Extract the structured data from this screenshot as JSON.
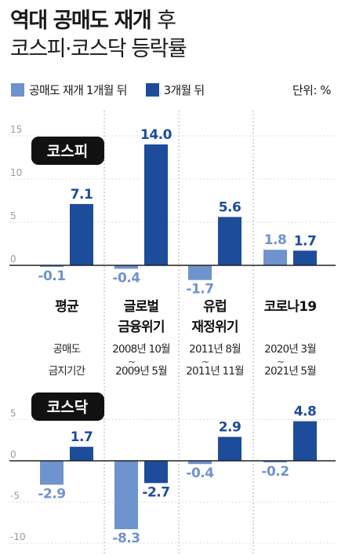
{
  "title": {
    "bold": "역대 공매도 재개",
    "light": "후",
    "line2": "코스피·코스닥 등락률"
  },
  "legend": {
    "series1": "공매도 재개 1개월 뒤",
    "series2": "3개월 뒤"
  },
  "unit": "단위: %",
  "colors": {
    "series1": "#6f93cc",
    "series2": "#1d4c9a",
    "tag_bg": "#111111",
    "tag_text": "#ffffff"
  },
  "periods": [
    {
      "name_lines": [
        "평균"
      ],
      "date_lines": [
        "공매도",
        "금지기간"
      ]
    },
    {
      "name_lines": [
        "글로벌",
        "금융위기"
      ],
      "date_lines": [
        "2008년 10월",
        "2009년 5월"
      ]
    },
    {
      "name_lines": [
        "유럽",
        "재정위기"
      ],
      "date_lines": [
        "2011년 8월",
        "2011년 11월"
      ]
    },
    {
      "name_lines": [
        "코로나19"
      ],
      "date_lines": [
        "2020년 3월",
        "2021년 5월"
      ]
    }
  ],
  "chart_data": [
    {
      "type": "bar",
      "tag": "코스피",
      "categories": [
        "평균",
        "글로벌 금융위기",
        "유럽 재정위기",
        "코로나19"
      ],
      "series": [
        {
          "name": "공매도 재개 1개월 뒤",
          "values": [
            -0.1,
            -0.4,
            -1.7,
            1.8
          ]
        },
        {
          "name": "3개월 뒤",
          "values": [
            7.1,
            14.0,
            5.6,
            1.7
          ]
        }
      ],
      "ylim": [
        0,
        15
      ],
      "yticks": [
        0,
        5,
        10,
        15
      ]
    },
    {
      "type": "bar",
      "tag": "코스닥",
      "categories": [
        "평균",
        "글로벌 금융위기",
        "유럽 재정위기",
        "코로나19"
      ],
      "series": [
        {
          "name": "공매도 재개 1개월 뒤",
          "values": [
            -2.9,
            -8.3,
            -0.4,
            -0.2
          ]
        },
        {
          "name": "3개월 뒤",
          "values": [
            1.7,
            -2.7,
            2.9,
            4.8
          ]
        }
      ],
      "ylim": [
        -10,
        5
      ],
      "yticks": [
        -10,
        -5,
        0,
        5
      ]
    }
  ]
}
